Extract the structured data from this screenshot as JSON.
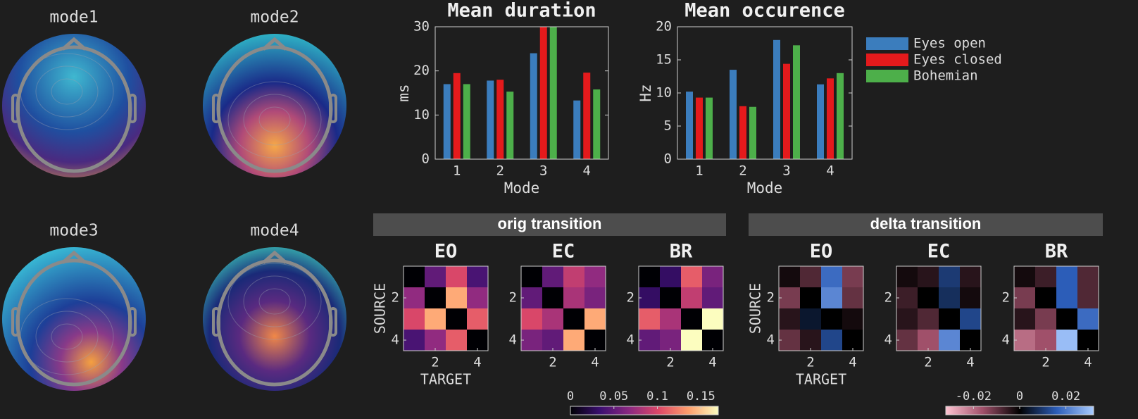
{
  "topomaps": [
    {
      "title": "mode1"
    },
    {
      "title": "mode2"
    },
    {
      "title": "mode3"
    },
    {
      "title": "mode4"
    }
  ],
  "chart_data": [
    {
      "type": "bar",
      "title": "Mean duration",
      "xlabel": "Mode",
      "ylabel": "ms",
      "categories": [
        "1",
        "2",
        "3",
        "4"
      ],
      "series": [
        {
          "color": "#3b7dbd",
          "values": [
            17,
            17.8,
            24,
            13.3
          ]
        },
        {
          "color": "#e41a1c",
          "values": [
            19.5,
            18,
            30,
            19.6
          ]
        },
        {
          "color": "#4daf4a",
          "values": [
            17,
            15.3,
            30,
            15.8
          ]
        }
      ],
      "ylim": [
        0,
        30
      ],
      "yticks": [
        0,
        10,
        20,
        30
      ]
    },
    {
      "type": "bar",
      "title": "Mean occurence",
      "xlabel": "Mode",
      "ylabel": "Hz",
      "categories": [
        "1",
        "2",
        "3",
        "4"
      ],
      "series": [
        {
          "name": "Eyes open",
          "color": "#3b7dbd",
          "values": [
            10.2,
            13.5,
            18,
            11.3
          ]
        },
        {
          "name": "Eyes closed",
          "color": "#e41a1c",
          "values": [
            9.3,
            8,
            14.4,
            12.2
          ]
        },
        {
          "name": "Bohemian",
          "color": "#4daf4a",
          "values": [
            9.3,
            7.9,
            17.2,
            13
          ]
        }
      ],
      "ylim": [
        0,
        20
      ],
      "yticks": [
        0,
        5,
        10,
        15,
        20
      ],
      "legend": "right"
    },
    {
      "type": "heatmap",
      "title": "orig transition",
      "xlabel": "TARGET",
      "ylabel": "SOURCE",
      "xticks": [
        2,
        4
      ],
      "yticks": [
        2,
        4
      ],
      "zlim": [
        0,
        0.17
      ],
      "zticks": [
        0,
        0.05,
        0.1,
        0.15
      ],
      "colormap": [
        "#000004",
        "#3b0f70",
        "#8c2981",
        "#de4968",
        "#fe9f6d",
        "#fcfdbf"
      ],
      "panels": [
        {
          "title": "EO",
          "values": [
            [
              0,
              0.05,
              0.1,
              0.04
            ],
            [
              0.07,
              0,
              0.14,
              0.07
            ],
            [
              0.1,
              0.14,
              0,
              0.11
            ],
            [
              0.04,
              0.07,
              0.11,
              0
            ]
          ]
        },
        {
          "title": "EC",
          "values": [
            [
              0,
              0.05,
              0.09,
              0.07
            ],
            [
              0.05,
              0,
              0.08,
              0.06
            ],
            [
              0.1,
              0.08,
              0,
              0.14
            ],
            [
              0.06,
              0.05,
              0.14,
              0
            ]
          ]
        },
        {
          "title": "BR",
          "values": [
            [
              0,
              0.03,
              0.11,
              0.06
            ],
            [
              0.03,
              0,
              0.09,
              0.05
            ],
            [
              0.11,
              0.08,
              0,
              0.17
            ],
            [
              0.05,
              0.06,
              0.17,
              0
            ]
          ]
        }
      ]
    },
    {
      "type": "heatmap",
      "title": "delta transition",
      "xlabel": "TARGET",
      "ylabel": "SOURCE",
      "xticks": [
        2,
        4
      ],
      "yticks": [
        2,
        4
      ],
      "zlim": [
        -0.032,
        0.032
      ],
      "zticks": [
        -0.02,
        0,
        0.02
      ],
      "colormap": [
        "#ffc4d2",
        "#a0506a",
        "#000000",
        "#2c5db8",
        "#a8cbff"
      ],
      "panels": [
        {
          "title": "EO",
          "values": [
            [
              -0.002,
              -0.008,
              0.018,
              -0.012
            ],
            [
              -0.012,
              0,
              0.022,
              -0.01
            ],
            [
              -0.004,
              0.004,
              0,
              -0.002
            ],
            [
              -0.01,
              -0.004,
              0.012,
              0
            ]
          ]
        },
        {
          "title": "EC",
          "values": [
            [
              -0.002,
              -0.004,
              0.01,
              -0.004
            ],
            [
              -0.006,
              0,
              0.008,
              -0.002
            ],
            [
              -0.004,
              -0.008,
              0,
              0.012
            ],
            [
              -0.01,
              -0.016,
              0.022,
              0
            ]
          ]
        },
        {
          "title": "BR",
          "values": [
            [
              -0.002,
              -0.006,
              0.016,
              -0.008
            ],
            [
              -0.012,
              0,
              0.016,
              -0.008
            ],
            [
              -0.004,
              -0.012,
              0,
              0.018
            ],
            [
              -0.02,
              -0.016,
              0.03,
              0
            ]
          ]
        }
      ]
    }
  ]
}
